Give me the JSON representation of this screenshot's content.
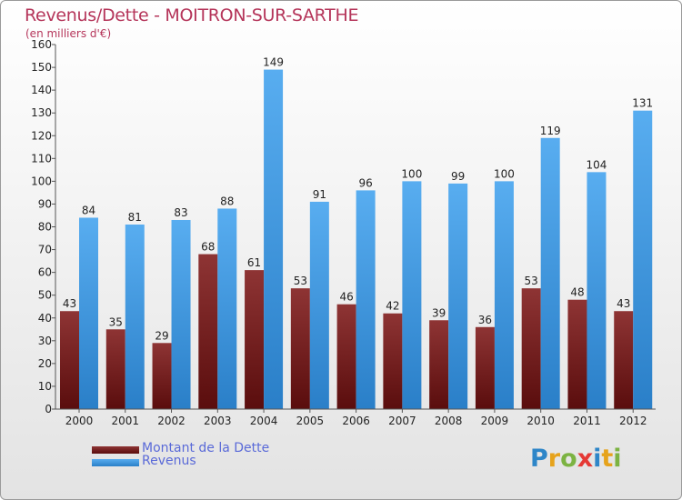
{
  "title": "Revenus/Dette - MOITRON-SUR-SARTHE",
  "subtitle": "(en milliers d'€)",
  "logo": {
    "letters": [
      {
        "ch": "P",
        "color": "#2e86c8"
      },
      {
        "ch": "r",
        "color": "#e6a31c"
      },
      {
        "ch": "o",
        "color": "#7cb342"
      },
      {
        "ch": "x",
        "color": "#e53935"
      },
      {
        "ch": "i",
        "color": "#2e86c8"
      },
      {
        "ch": "t",
        "color": "#e6a31c"
      },
      {
        "ch": "i",
        "color": "#7cb342"
      }
    ]
  },
  "chart_data": {
    "type": "bar",
    "title": "Revenus/Dette - MOITRON-SUR-SARTHE",
    "subtitle": "(en milliers d'€)",
    "categories": [
      "2000",
      "2001",
      "2002",
      "2003",
      "2004",
      "2005",
      "2006",
      "2007",
      "2008",
      "2009",
      "2010",
      "2011",
      "2012"
    ],
    "series": [
      {
        "name": "Montant de la Dette",
        "color": "#7a1f1f",
        "values": [
          43,
          35,
          29,
          68,
          61,
          53,
          46,
          42,
          39,
          36,
          53,
          48,
          43
        ]
      },
      {
        "name": "Revenus",
        "color": "#3d9be9",
        "values": [
          84,
          81,
          83,
          88,
          149,
          91,
          96,
          100,
          99,
          100,
          119,
          104,
          131
        ]
      }
    ],
    "yticks": [
      "0",
      "10",
      "20",
      "30",
      "40",
      "50",
      "60",
      "70",
      "80",
      "90",
      "100",
      "110",
      "120",
      "130",
      "140",
      "150",
      "160"
    ],
    "ylim": [
      0,
      160
    ],
    "grid": false,
    "legend": "bottom-left"
  }
}
